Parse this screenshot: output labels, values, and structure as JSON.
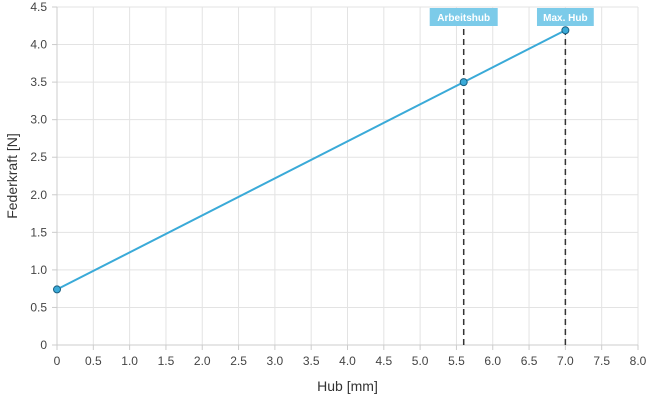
{
  "chart_data": {
    "type": "line",
    "xlabel": "Hub [mm]",
    "ylabel": "Federkraft [N]",
    "xlim": [
      0,
      8
    ],
    "ylim": [
      0,
      4.5
    ],
    "x_ticks": [
      "0",
      "0.5",
      "1.0",
      "1.5",
      "2.0",
      "2.5",
      "3.0",
      "3.5",
      "4.0",
      "4.5",
      "5.0",
      "5.5",
      "6.0",
      "6.5",
      "7.0",
      "7.5",
      "8.0"
    ],
    "y_ticks": [
      "0",
      "0.5",
      "1.0",
      "1.5",
      "2.0",
      "2.5",
      "3.0",
      "3.5",
      "4.0",
      "4.5"
    ],
    "grid": true,
    "series": [
      {
        "color": "#3aaad8",
        "points": [
          {
            "x": 0,
            "y": 0.74
          },
          {
            "x": 5.6,
            "y": 3.5
          },
          {
            "x": 7.0,
            "y": 4.19
          }
        ]
      }
    ],
    "markers": [
      {
        "x": 5.6,
        "label": "Arbeitshub"
      },
      {
        "x": 7.0,
        "label": "Max. Hub"
      }
    ],
    "colors": {
      "line": "#3aaad8",
      "marker_box": "#7ccbe9",
      "marker_line": "#333333",
      "grid": "#e3e3e3",
      "axis": "#cccccc"
    }
  }
}
